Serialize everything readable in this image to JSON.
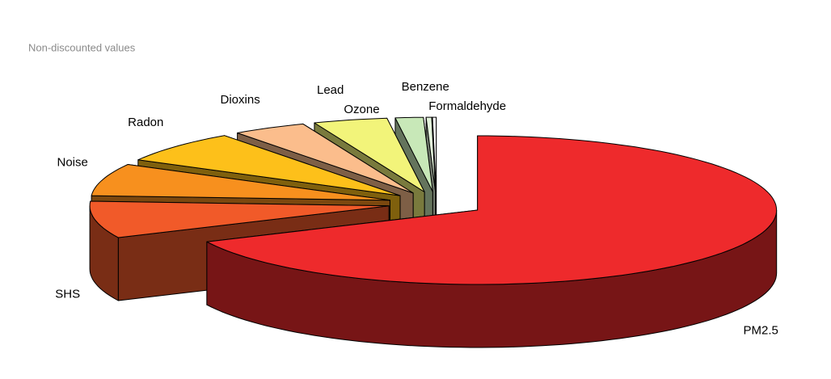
{
  "chart_data": {
    "type": "pie3d",
    "subtitle": "Non-discounted values",
    "categories": [
      "PM2.5",
      "SHS",
      "Noise",
      "Radon",
      "Dioxins",
      "Lead",
      "Ozone",
      "Benzene",
      "Formaldehyde"
    ],
    "values": [
      68,
      8,
      7,
      7,
      4,
      4,
      1.5,
      0.3,
      0.2
    ],
    "colors": [
      "#ee2a2c",
      "#f15a29",
      "#f7901e",
      "#fdc01a",
      "#fbbd8c",
      "#f2f47a",
      "#c8e8b8",
      "#e4f4dc",
      "#ffffff"
    ],
    "start_angle": -90,
    "direction": "clockwise",
    "exploded": true
  }
}
